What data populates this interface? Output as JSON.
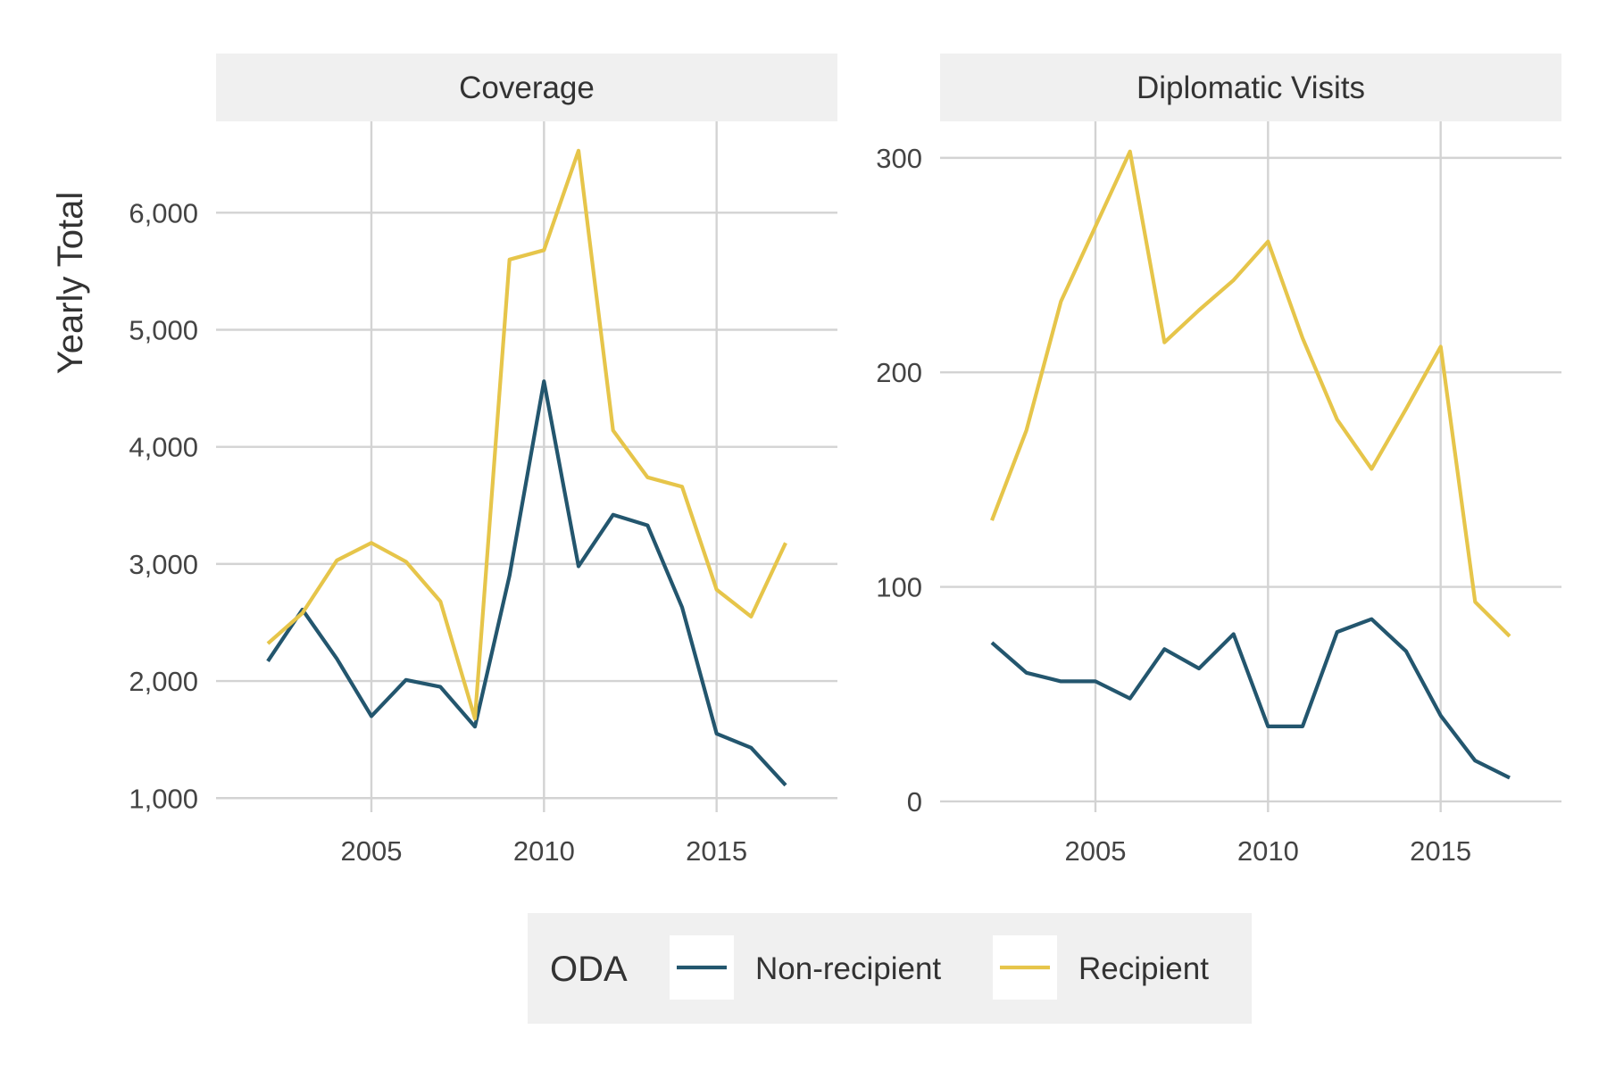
{
  "chart_data": {
    "type": "line",
    "y_axis_title": "Yearly Total",
    "legend": {
      "title": "ODA",
      "position": "bottom",
      "entries": [
        {
          "name": "Non-recipient",
          "color": "#23566e"
        },
        {
          "name": "Recipient",
          "color": "#e6c54a"
        }
      ]
    },
    "panels": [
      {
        "title": "Coverage",
        "x": [
          2002,
          2003,
          2004,
          2005,
          2006,
          2007,
          2008,
          2009,
          2010,
          2011,
          2012,
          2013,
          2014,
          2015,
          2016,
          2017
        ],
        "xlim": [
          2000.5,
          2018.5
        ],
        "ylim": [
          880,
          6780
        ],
        "x_ticks": [
          2005,
          2010,
          2015
        ],
        "x_tick_labels": [
          "2005",
          "2010",
          "2015"
        ],
        "y_ticks": [
          1000,
          2000,
          3000,
          4000,
          5000,
          6000
        ],
        "y_tick_labels": [
          "1,000",
          "2,000",
          "3,000",
          "4,000",
          "5,000",
          "6,000"
        ],
        "grid": true,
        "series": [
          {
            "name": "Non-recipient",
            "color": "#23566e",
            "values": [
              2170,
              2610,
              2190,
              1700,
              2010,
              1950,
              1610,
              2900,
              4560,
              2980,
              3420,
              3330,
              2630,
              1550,
              1430,
              1110
            ]
          },
          {
            "name": "Recipient",
            "color": "#e6c54a",
            "values": [
              2320,
              2580,
              3030,
              3180,
              3020,
              2680,
              1680,
              5600,
              5680,
              6530,
              4140,
              3740,
              3660,
              2780,
              2550,
              3180
            ]
          }
        ]
      },
      {
        "title": "Diplomatic Visits",
        "x": [
          2002,
          2003,
          2004,
          2005,
          2006,
          2007,
          2008,
          2009,
          2010,
          2011,
          2012,
          2013,
          2014,
          2015,
          2016,
          2017
        ],
        "xlim": [
          2000.5,
          2018.5
        ],
        "ylim": [
          -5,
          317
        ],
        "x_ticks": [
          2005,
          2010,
          2015
        ],
        "x_tick_labels": [
          "2005",
          "2010",
          "2015"
        ],
        "y_ticks": [
          0,
          100,
          200,
          300
        ],
        "y_tick_labels": [
          "0",
          "100",
          "200",
          "300"
        ],
        "grid": true,
        "series": [
          {
            "name": "Non-recipient",
            "color": "#23566e",
            "values": [
              74,
              60,
              56,
              56,
              48,
              71,
              62,
              78,
              35,
              35,
              79,
              85,
              70,
              40,
              19,
              11
            ]
          },
          {
            "name": "Recipient",
            "color": "#e6c54a",
            "values": [
              131,
              173,
              233,
              268,
              303,
              214,
              229,
              243,
              261,
              216,
              178,
              155,
              183,
              212,
              93,
              77
            ]
          }
        ]
      }
    ]
  }
}
